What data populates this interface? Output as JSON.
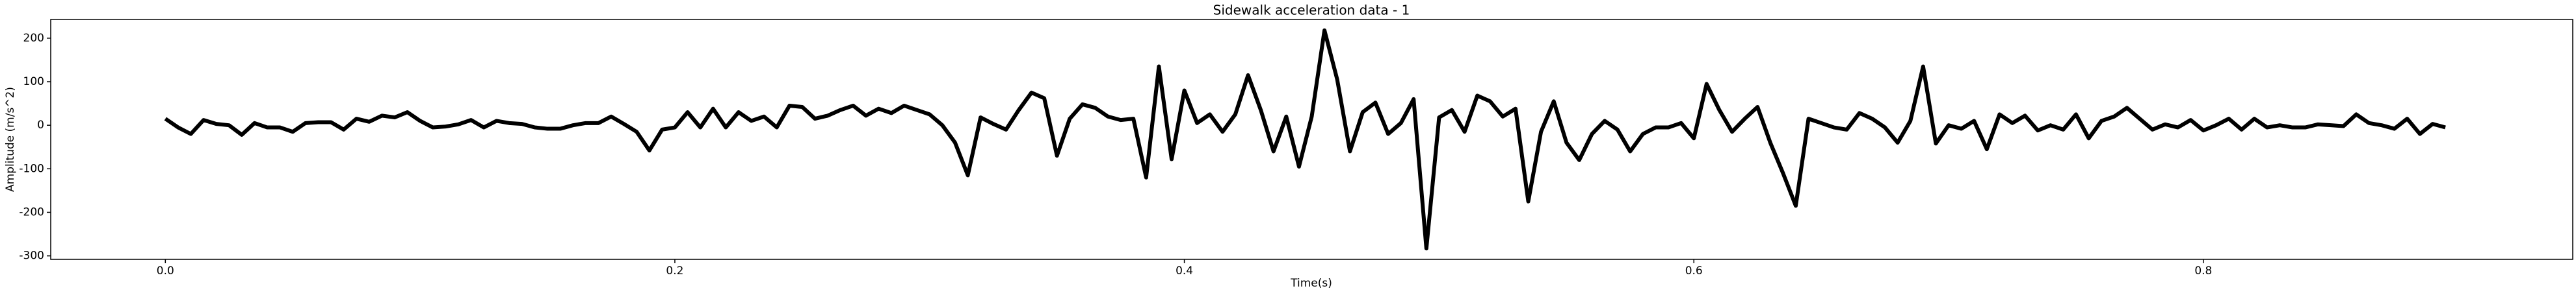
{
  "chart_data": {
    "type": "line",
    "title": "Sidewalk acceleration data - 1",
    "xlabel": "Time(s)",
    "ylabel": "Amplitude (m/s^2)",
    "color": "#000000",
    "x": [
      0,
      0.005,
      0.01,
      0.015,
      0.02,
      0.025,
      0.03,
      0.035,
      0.04,
      0.045,
      0.05,
      0.055,
      0.06,
      0.065,
      0.07,
      0.075,
      0.08,
      0.085,
      0.09,
      0.095,
      0.1,
      0.105,
      0.11,
      0.115,
      0.12,
      0.125,
      0.13,
      0.135,
      0.14,
      0.145,
      0.15,
      0.155,
      0.16,
      0.165,
      0.17,
      0.175,
      0.18,
      0.185,
      0.19,
      0.195,
      0.2,
      0.205,
      0.21,
      0.215,
      0.22,
      0.225,
      0.23,
      0.235,
      0.24,
      0.245,
      0.25,
      0.255,
      0.26,
      0.265,
      0.27,
      0.275,
      0.28,
      0.285,
      0.29,
      0.295,
      0.3,
      0.305,
      0.31,
      0.315,
      0.32,
      0.325,
      0.33,
      0.335,
      0.34,
      0.345,
      0.35,
      0.355,
      0.36,
      0.365,
      0.37,
      0.375,
      0.38,
      0.385,
      0.39,
      0.395,
      0.4,
      0.405,
      0.41,
      0.415,
      0.42,
      0.425,
      0.43,
      0.435,
      0.44,
      0.445,
      0.45,
      0.455,
      0.46,
      0.465,
      0.47,
      0.475,
      0.48,
      0.485,
      0.49,
      0.495,
      0.5,
      0.505,
      0.51,
      0.515,
      0.52,
      0.525,
      0.53,
      0.535,
      0.54,
      0.545,
      0.55,
      0.555,
      0.56,
      0.565,
      0.57,
      0.575,
      0.58,
      0.585,
      0.59,
      0.595,
      0.6,
      0.605,
      0.61,
      0.615,
      0.62,
      0.625,
      0.63,
      0.635,
      0.64,
      0.645,
      0.65,
      0.655,
      0.66,
      0.665,
      0.67,
      0.675,
      0.68,
      0.685,
      0.69,
      0.695,
      0.7,
      0.705,
      0.71,
      0.715,
      0.72,
      0.725,
      0.73,
      0.735,
      0.74,
      0.745,
      0.75,
      0.755,
      0.76,
      0.765,
      0.77,
      0.775,
      0.78,
      0.785,
      0.79,
      0.795,
      0.8,
      0.805,
      0.81,
      0.815,
      0.82,
      0.825,
      0.83,
      0.835,
      0.84,
      0.845,
      0.85,
      0.855,
      0.86,
      0.865,
      0.87,
      0.875,
      0.88,
      0.885,
      0.89,
      0.895
    ],
    "values": [
      15,
      -5,
      -20,
      12,
      3,
      0,
      -22,
      5,
      -5,
      -5,
      -15,
      5,
      7,
      7,
      -10,
      15,
      8,
      22,
      18,
      30,
      10,
      -5,
      -3,
      2,
      12,
      -5,
      10,
      5,
      3,
      -5,
      -8,
      -8,
      0,
      5,
      5,
      20,
      3,
      -15,
      -58,
      -10,
      -5,
      30,
      -5,
      38,
      -5,
      30,
      10,
      20,
      -5,
      45,
      42,
      15,
      22,
      35,
      45,
      22,
      38,
      28,
      45,
      35,
      25,
      0,
      -40,
      -115,
      18,
      3,
      -10,
      35,
      75,
      62,
      -70,
      15,
      48,
      40,
      20,
      12,
      15,
      -120,
      135,
      -78,
      80,
      5,
      25,
      -15,
      25,
      115,
      35,
      -60,
      20,
      -95,
      20,
      218,
      105,
      -60,
      30,
      52,
      -20,
      5,
      60,
      -283,
      18,
      35,
      -15,
      68,
      55,
      20,
      38,
      -175,
      -15,
      55,
      -40,
      -80,
      -20,
      10,
      -10,
      -60,
      -20,
      -5,
      -5,
      5,
      -30,
      95,
      35,
      -15,
      15,
      42,
      -40,
      -110,
      -185,
      15,
      5,
      -5,
      -10,
      28,
      15,
      -5,
      -40,
      10,
      135,
      -42,
      0,
      -8,
      10,
      -55,
      25,
      5,
      22,
      -12,
      0,
      -10,
      25,
      -30,
      10,
      20,
      40,
      15,
      -10,
      2,
      -5,
      12,
      -12,
      0,
      15,
      -10,
      15,
      -5,
      0,
      -5,
      -5,
      2,
      0,
      -2,
      25,
      5,
      0,
      -8,
      15,
      -20,
      3,
      -5
    ],
    "xlim": [
      -0.045,
      0.945
    ],
    "ylim": [
      -308,
      243
    ],
    "xticks": [
      {
        "value": 0,
        "label": "0.0"
      },
      0.2,
      0.4,
      0.6,
      0.8
    ],
    "yticks": [
      -300,
      -200,
      -100,
      0,
      100,
      200
    ]
  }
}
